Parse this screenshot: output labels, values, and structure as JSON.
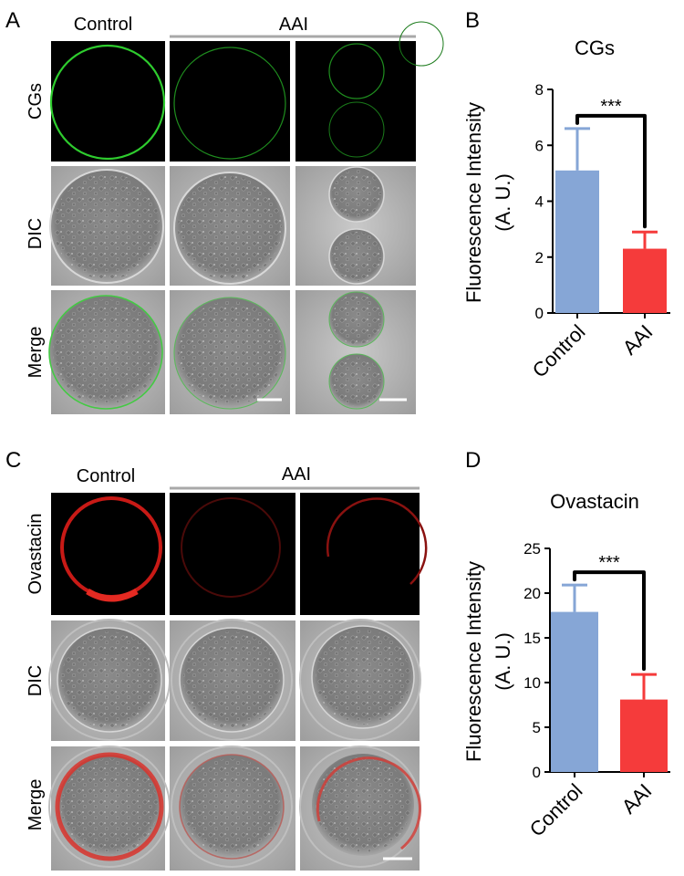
{
  "panel_letters": [
    "A",
    "B",
    "C",
    "D"
  ],
  "micrographs": [
    {
      "columns": [
        "Control",
        "AAI"
      ],
      "rows": [
        "CGs",
        "DIC",
        "Merge"
      ],
      "stain_color": "#3ad03a"
    },
    {
      "columns": [
        "Control",
        "AAI"
      ],
      "rows": [
        "Ovastacin",
        "DIC",
        "Merge"
      ],
      "stain_color": "#e0221c"
    }
  ],
  "chart_data": [
    {
      "type": "bar",
      "title": "CGs",
      "ylabel": "Fluorescence Intensity",
      "ylabel2": "(A. U.)",
      "categories": [
        "Control",
        "AAI"
      ],
      "values": [
        5.1,
        2.3
      ],
      "errors": [
        1.5,
        0.6
      ],
      "colors": [
        "#86a6d6",
        "#f53b3b"
      ],
      "ylim": [
        0,
        8
      ],
      "yticks": [
        "0",
        "2",
        "4",
        "6",
        "8"
      ],
      "significance": "***"
    },
    {
      "type": "bar",
      "title": "Ovastacin",
      "ylabel": "Fluorescence Intensity",
      "ylabel2": "(A. U.)",
      "categories": [
        "Control",
        "AAI"
      ],
      "values": [
        17.9,
        8.1
      ],
      "errors": [
        3.0,
        2.8
      ],
      "colors": [
        "#86a6d6",
        "#f53b3b"
      ],
      "ylim": [
        0,
        25
      ],
      "yticks": [
        "0",
        "5",
        "10",
        "15",
        "20",
        "25"
      ],
      "significance": "***"
    }
  ]
}
